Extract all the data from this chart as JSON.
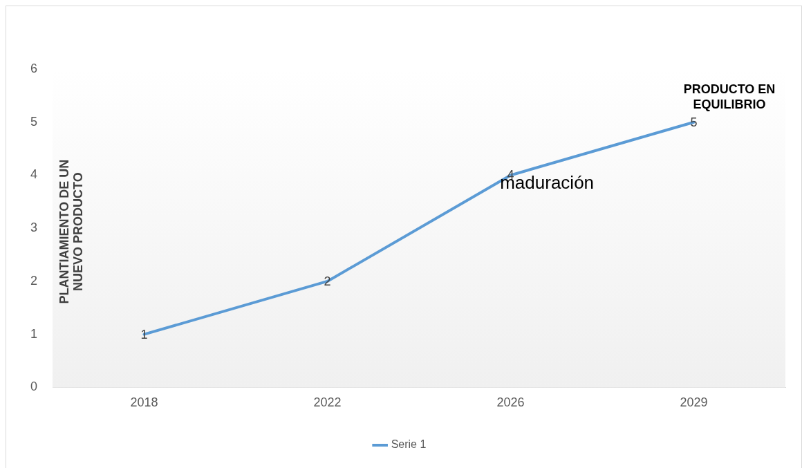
{
  "chart_data": {
    "type": "line",
    "categories": [
      "2018",
      "2022",
      "2026",
      "2029"
    ],
    "series": [
      {
        "name": "Serie 1",
        "color": "#5b9bd5",
        "values": [
          1,
          2,
          4,
          5
        ]
      }
    ],
    "ylabel": "PLANTIAMIENTO DE UN\nNUEVO PRODUCTO",
    "ylim": [
      0,
      6
    ],
    "yticks": [
      0,
      1,
      2,
      3,
      4,
      5,
      6
    ],
    "legend": "bottom",
    "marker": "none",
    "line_style": "solid",
    "data_labels": true,
    "annotations": [
      "maduración",
      "PRODUCTO EN\nEQUILIBRIO"
    ]
  }
}
